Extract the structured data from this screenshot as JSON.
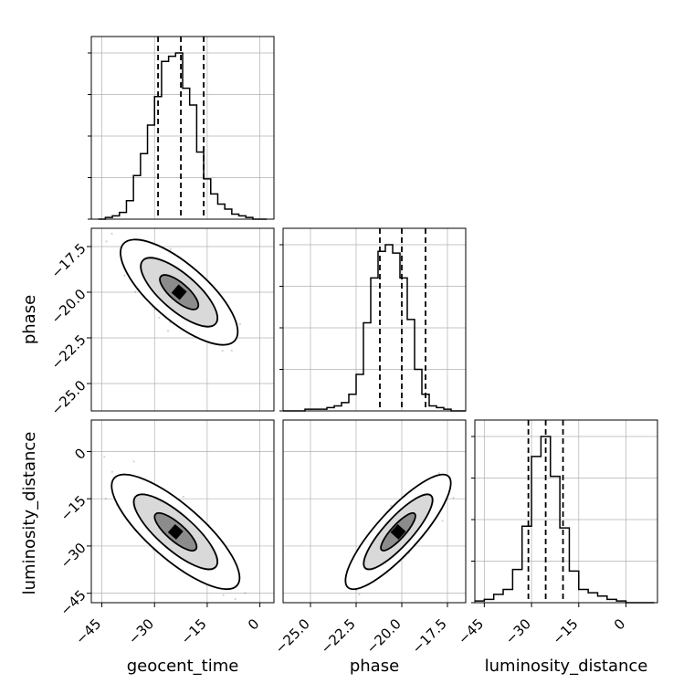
{
  "chart_data": {
    "type": "corner",
    "parameters": [
      "geocent_time",
      "phase",
      "luminosity_distance"
    ],
    "ranges": {
      "geocent_time": [
        -48,
        4
      ],
      "phase": [
        -26.5,
        -16.5
      ],
      "luminosity_distance": [
        -48,
        10
      ]
    },
    "ticks": {
      "geocent_time": [
        -45,
        -30,
        -15,
        0
      ],
      "phase": [
        -25.0,
        -22.5,
        -20.0,
        -17.5
      ],
      "luminosity_distance": [
        -45,
        -30,
        -15,
        0
      ]
    },
    "tick_labels": {
      "geocent_time": [
        "−45",
        "−30",
        "−15",
        "0"
      ],
      "phase": [
        "−25.0",
        "−22.5",
        "−20.0",
        "−17.5"
      ],
      "luminosity_distance": [
        "−45",
        "−30",
        "−15",
        "0"
      ]
    },
    "quantiles": {
      "geocent_time": [
        -29,
        -22.5,
        -16
      ],
      "phase": [
        -21.2,
        -20.0,
        -18.7
      ],
      "luminosity_distance": [
        -31,
        -25.5,
        -20
      ]
    },
    "histograms": {
      "geocent_time": {
        "bin_edges": [
          -46,
          -44,
          -42,
          -40,
          -38,
          -36,
          -34,
          -32,
          -30,
          -28,
          -26,
          -24,
          -22,
          -20,
          -18,
          -16,
          -14,
          -12,
          -10,
          -8,
          -6,
          -4,
          -2,
          0,
          2
        ],
        "counts": [
          0,
          1,
          2,
          4,
          11,
          26,
          39,
          56,
          73,
          94,
          97,
          99,
          78,
          68,
          40,
          24,
          15,
          9,
          6,
          3,
          2,
          1,
          0,
          0
        ]
      },
      "phase": {
        "bin_edges": [
          -26.5,
          -26.1,
          -25.7,
          -25.3,
          -24.9,
          -24.5,
          -24.1,
          -23.7,
          -23.3,
          -22.9,
          -22.5,
          -22.1,
          -21.7,
          -21.3,
          -20.9,
          -20.5,
          -20.1,
          -19.7,
          -19.3,
          -18.9,
          -18.5,
          -18.1,
          -17.7,
          -17.3,
          -16.9,
          -16.5
        ],
        "counts": [
          0,
          0,
          0,
          1,
          1,
          1,
          2,
          3,
          5,
          10,
          22,
          53,
          80,
          96,
          100,
          95,
          80,
          55,
          25,
          10,
          3,
          2,
          1,
          0,
          0
        ]
      },
      "luminosity_distance": {
        "bin_edges": [
          -48,
          -45,
          -42,
          -39,
          -36,
          -33,
          -30,
          -27,
          -24,
          -21,
          -18,
          -15,
          -12,
          -9,
          -6,
          -3,
          0,
          3,
          6,
          9
        ],
        "counts": [
          1,
          2,
          5,
          8,
          20,
          46,
          88,
          100,
          76,
          45,
          19,
          8,
          6,
          4,
          2,
          1,
          0,
          0,
          0
        ]
      }
    },
    "panels_2d": [
      {
        "x": "geocent_time",
        "y": "phase",
        "center": [
          -23,
          -20.0
        ],
        "correlation": -0.75,
        "sd": [
          5.5,
          0.95
        ],
        "contour_levels": [
          0.39,
          0.86,
          0.99
        ]
      },
      {
        "x": "geocent_time",
        "y": "luminosity_distance",
        "center": [
          -24,
          -25.5
        ],
        "correlation": -0.8,
        "sd": [
          6.0,
          6.0
        ],
        "contour_levels": [
          0.39,
          0.86,
          0.99
        ]
      },
      {
        "x": "phase",
        "y": "luminosity_distance",
        "center": [
          -20.2,
          -25.5
        ],
        "correlation": 0.85,
        "sd": [
          0.95,
          6.0
        ],
        "contour_levels": [
          0.39,
          0.86,
          0.99
        ]
      }
    ],
    "xlabel_text": {
      "geocent_time": "geocent_time",
      "phase": "phase",
      "luminosity_distance": "luminosity_distance"
    },
    "ylabel_text": {
      "phase": "phase",
      "luminosity_distance": "luminosity_distance"
    },
    "grid": true,
    "colors": {
      "line": "#000000",
      "grid": "#b0b0b0",
      "points": "#7f7f7f"
    }
  }
}
